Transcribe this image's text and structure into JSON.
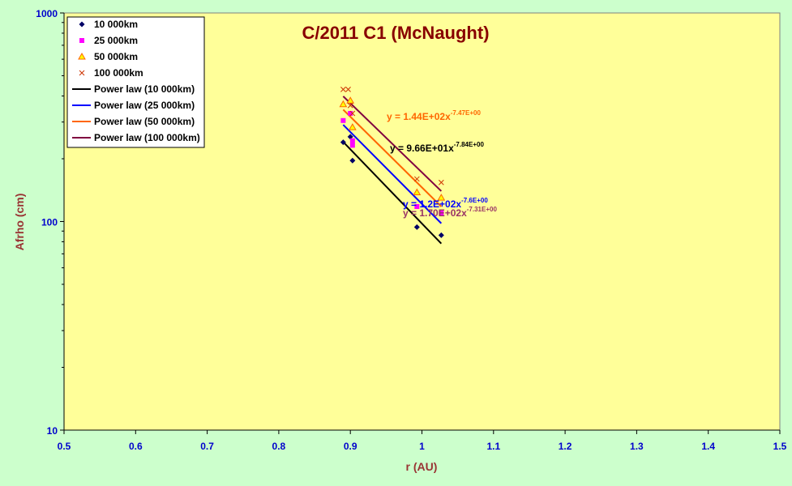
{
  "chart_data": {
    "type": "scatter",
    "title": "C/2011 C1 (McNaught)",
    "xlabel": "r (AU)",
    "ylabel": "Afrho (cm)",
    "xlim": [
      0.5,
      1.5
    ],
    "ylim": [
      10,
      1000
    ],
    "yscale": "log",
    "xticks": [
      "0.5",
      "0.6",
      "0.7",
      "0.8",
      "0.9",
      "1",
      "1.1",
      "1.2",
      "1.3",
      "1.4",
      "1.5"
    ],
    "yticks": [
      "10",
      "100",
      "1000"
    ],
    "grid": false,
    "legend_position": "top-left",
    "colors": {
      "page_background": "#ccffcc",
      "plot_background": "#ffff99",
      "tick_labels": "#0000cc",
      "axis_titles": "#993333",
      "title": "#880000"
    },
    "series": [
      {
        "name": "10 000km",
        "marker": "diamond",
        "color": "#000066",
        "points": [
          [
            0.89,
            240
          ],
          [
            0.9,
            255
          ],
          [
            0.903,
            196
          ],
          [
            0.993,
            94
          ],
          [
            1.027,
            86
          ]
        ]
      },
      {
        "name": "25 000km",
        "marker": "square",
        "color": "#ff00ff",
        "points": [
          [
            0.89,
            305
          ],
          [
            0.9,
            330
          ],
          [
            0.903,
            232
          ],
          [
            0.903,
            244
          ],
          [
            0.993,
            118
          ],
          [
            1.027,
            110
          ]
        ]
      },
      {
        "name": "50 000km",
        "marker": "triangle",
        "color": "#ff6600",
        "fill": "#ffff00",
        "points": [
          [
            0.89,
            365
          ],
          [
            0.9,
            380
          ],
          [
            0.903,
            283
          ],
          [
            0.993,
            138
          ],
          [
            1.027,
            130
          ]
        ]
      },
      {
        "name": "100 000km",
        "marker": "x",
        "color": "#cc3300",
        "points": [
          [
            0.89,
            430
          ],
          [
            0.897,
            430
          ],
          [
            0.9,
            360
          ],
          [
            0.903,
            330
          ],
          [
            0.993,
            160
          ],
          [
            1.027,
            154
          ]
        ]
      }
    ],
    "fits": [
      {
        "name": "Power law (10 000km)",
        "color": "#000000",
        "a": 96.6,
        "b": -7.84,
        "x_range": [
          0.89,
          1.027
        ],
        "label_prefix": "y = 9.66E+01x",
        "label_exp": "-7.84E+00",
        "label_color": "#000000"
      },
      {
        "name": "Power law (25 000km)",
        "color": "#0000ff",
        "a": 120,
        "b": -7.6,
        "x_range": [
          0.89,
          1.027
        ],
        "label_prefix": "y = 1.2E+02x",
        "label_exp": "-7.6E+00",
        "label_color": "#0000ff"
      },
      {
        "name": "Power law (50 000km)",
        "color": "#ff6600",
        "a": 144,
        "b": -7.47,
        "x_range": [
          0.89,
          1.027
        ],
        "label_prefix": "y = 1.44E+02x",
        "label_exp": "-7.47E+00",
        "label_color": "#ff6600"
      },
      {
        "name": "Power law (100 000km)",
        "color": "#800040",
        "a": 170,
        "b": -7.31,
        "x_range": [
          0.89,
          1.027
        ],
        "label_prefix": "y = 1.70E+02x",
        "label_exp": "-7.31E+00",
        "label_color": "#993366"
      }
    ]
  }
}
